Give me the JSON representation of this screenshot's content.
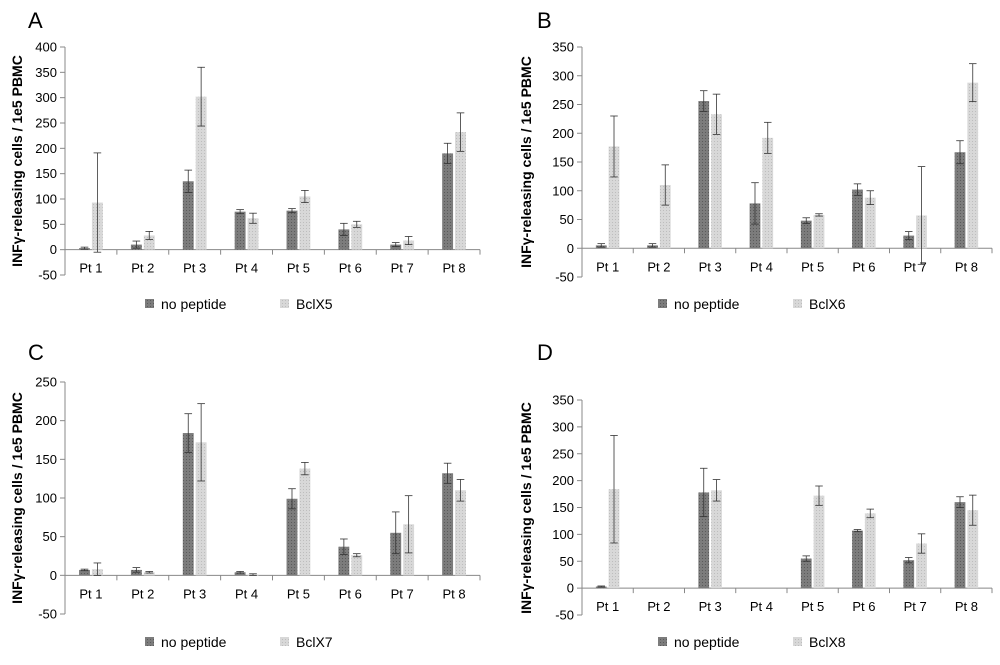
{
  "chart_data": [
    {
      "type": "bar",
      "panel_label": "A",
      "ylabel": "INFγ-releasing cells / 1e5 PBMC",
      "ylim": [
        -50,
        400
      ],
      "yticks": [
        -50,
        0,
        50,
        100,
        150,
        200,
        250,
        300,
        350,
        400
      ],
      "categories": [
        "Pt 1",
        "Pt 2",
        "Pt 3",
        "Pt 4",
        "Pt 5",
        "Pt 6",
        "Pt 7",
        "Pt 8"
      ],
      "series": [
        {
          "name": "no peptide",
          "color": "#7a7a7a",
          "values": [
            3,
            10,
            135,
            75,
            77,
            40,
            10,
            190
          ],
          "errors": [
            2,
            7,
            22,
            4,
            4,
            12,
            4,
            20
          ]
        },
        {
          "name": "BclX5",
          "color": "#d4d4d4",
          "values": [
            93,
            28,
            302,
            62,
            105,
            50,
            18,
            232
          ],
          "errors": [
            98,
            8,
            58,
            10,
            12,
            6,
            8,
            38
          ]
        }
      ],
      "legend": "bottom"
    },
    {
      "type": "bar",
      "panel_label": "B",
      "ylabel": "INFγ-releasing cells / 1e5 PBMC",
      "ylim": [
        -50,
        350
      ],
      "yticks": [
        -50,
        0,
        50,
        100,
        150,
        200,
        250,
        300,
        350
      ],
      "categories": [
        "Pt 1",
        "Pt 2",
        "Pt 3",
        "Pt 4",
        "Pt 5",
        "Pt 6",
        "Pt 7",
        "Pt 8"
      ],
      "series": [
        {
          "name": "no peptide",
          "color": "#7a7a7a",
          "values": [
            5,
            5,
            256,
            78,
            48,
            102,
            22,
            167
          ],
          "errors": [
            3,
            3,
            18,
            36,
            5,
            10,
            7,
            20
          ]
        },
        {
          "name": "BclX6",
          "color": "#d4d4d4",
          "values": [
            177,
            110,
            233,
            192,
            58,
            88,
            57,
            288
          ],
          "errors": [
            53,
            35,
            35,
            27,
            2,
            12,
            85,
            33
          ]
        }
      ],
      "legend": "bottom"
    },
    {
      "type": "bar",
      "panel_label": "C",
      "ylabel": "INFγ-releasing cells / 1e5 PBMC",
      "ylim": [
        -50,
        250
      ],
      "yticks": [
        -50,
        0,
        50,
        100,
        150,
        200,
        250
      ],
      "categories": [
        "Pt 1",
        "Pt 2",
        "Pt 3",
        "Pt 4",
        "Pt 5",
        "Pt 6",
        "Pt 7",
        "Pt 8"
      ],
      "series": [
        {
          "name": "no peptide",
          "color": "#7a7a7a",
          "values": [
            7,
            7,
            184,
            4,
            99,
            37,
            55,
            132
          ],
          "errors": [
            1,
            3,
            25,
            1,
            13,
            10,
            27,
            13
          ]
        },
        {
          "name": "BclX7",
          "color": "#d4d4d4",
          "values": [
            8,
            4,
            172,
            1,
            138,
            26,
            66,
            110
          ],
          "errors": [
            8,
            1,
            50,
            1,
            8,
            2,
            37,
            14
          ]
        }
      ],
      "legend": "bottom"
    },
    {
      "type": "bar",
      "panel_label": "D",
      "ylabel": "INFγ-releasing cells / 1e5 PBMC",
      "ylim": [
        -50,
        350
      ],
      "yticks": [
        -50,
        0,
        50,
        100,
        150,
        200,
        250,
        300,
        350
      ],
      "categories": [
        "Pt 1",
        "Pt 2",
        "Pt 3",
        "Pt 4",
        "Pt 5",
        "Pt 6",
        "Pt 7",
        "Pt 8"
      ],
      "series": [
        {
          "name": "no peptide",
          "color": "#7a7a7a",
          "values": [
            3,
            0,
            178,
            0,
            55,
            107,
            52,
            160
          ],
          "errors": [
            1,
            0,
            45,
            0,
            5,
            2,
            5,
            10
          ]
        },
        {
          "name": "BclX8",
          "color": "#d4d4d4",
          "values": [
            184,
            0,
            182,
            0,
            172,
            139,
            83,
            145
          ],
          "errors": [
            100,
            0,
            20,
            0,
            18,
            8,
            18,
            28
          ]
        }
      ],
      "legend": "bottom"
    }
  ]
}
